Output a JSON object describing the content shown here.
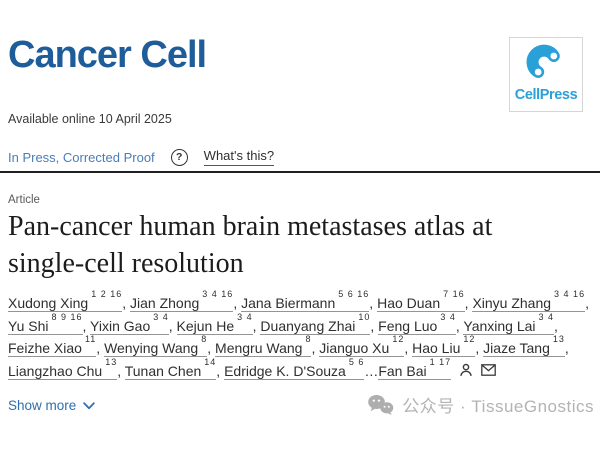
{
  "header": {
    "journal_title": "Cancer Cell",
    "publisher_logo_text": "CellPress"
  },
  "meta": {
    "available_online": "Available online 10 April 2025",
    "status": "In Press, Corrected Proof",
    "help_glyph": "?",
    "whats_this_label": "What's this?"
  },
  "article": {
    "type_label": "Article",
    "title": "Pan-cancer human brain metastases atlas at single-cell resolution",
    "title_lines": [
      "Pan-cancer human brain metastases atlas at",
      "single-cell resolution"
    ]
  },
  "authors": {
    "lines": [
      [
        {
          "name": "Xudong Xing",
          "sup": "1 2 16",
          "sep": ", "
        },
        {
          "name": "Jian Zhong",
          "sup": "3 4 16",
          "sep": ", "
        },
        {
          "name": "Jana Biermann",
          "sup": "5 6 16",
          "sep": ", "
        },
        {
          "name": "Hao Duan",
          "sup": "7 16",
          "sep": ", "
        },
        {
          "name": "Xinyu Zhang",
          "sup": "3 4 16",
          "sep": ","
        }
      ],
      [
        {
          "name": "Yu Shi",
          "sup": "8 9 16",
          "sep": ", "
        },
        {
          "name": "Yixin Gao",
          "sup": "3 4",
          "sep": ", "
        },
        {
          "name": "Kejun He",
          "sup": "3 4",
          "sep": ", "
        },
        {
          "name": "Duanyang Zhai",
          "sup": "10",
          "sep": ", "
        },
        {
          "name": "Feng Luo",
          "sup": "3 4",
          "sep": ", "
        },
        {
          "name": "Yanxing Lai",
          "sup": "3 4",
          "sep": ","
        }
      ],
      [
        {
          "name": "Feizhe Xiao",
          "sup": "11",
          "sep": ", "
        },
        {
          "name": "Wenying Wang",
          "sup": "8",
          "sep": ", "
        },
        {
          "name": "Mengru Wang",
          "sup": "8",
          "sep": ", "
        },
        {
          "name": "Jianguo Xu",
          "sup": "12",
          "sep": ", "
        },
        {
          "name": "Hao Liu",
          "sup": "12",
          "sep": ", "
        },
        {
          "name": "Jiaze Tang",
          "sup": "13",
          "sep": ","
        }
      ],
      [
        {
          "name": "Liangzhao Chu",
          "sup": "13",
          "sep": ", "
        },
        {
          "name": "Tunan Chen",
          "sup": "14",
          "sep": ", "
        },
        {
          "name": "Edridge K. D'Souza",
          "sup": "5 6",
          "sep": "…"
        },
        {
          "name": "Fan Bai",
          "sup": "1 17",
          "sep": ""
        }
      ]
    ],
    "icon_names": [
      "author-profile-icon",
      "corresponding-author-email-icon"
    ]
  },
  "actions": {
    "show_more_label": "Show more"
  },
  "watermark": {
    "text": "公众号 · TissueGnostics",
    "icon_name": "wechat-icon"
  },
  "colors": {
    "journal_blue": "#1f5c9a",
    "cellpress_blue": "#2aa0d9",
    "link_blue": "#4a7db8",
    "show_more_blue": "#2e6fad",
    "divider_dark": "#1f1f1f",
    "text_dark": "#1c1c1c",
    "text_body": "#2f2f2f",
    "text_muted": "#595959",
    "watermark_gray": "#b3b3b3"
  }
}
